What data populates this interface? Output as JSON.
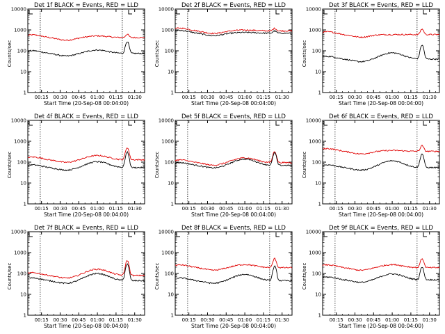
{
  "figure": {
    "ylabel": "Counts/sec",
    "xlabel": "Start Time (20-Sep-08 00:04:00)",
    "y_ticks": [
      "1",
      "10",
      "100",
      "1000",
      "10000"
    ],
    "x_ticks": [
      "00:15",
      "00:30",
      "00:45",
      "01:00",
      "01:15",
      "01:30"
    ],
    "colors": {
      "events": "#000000",
      "lld": "#e00000",
      "axes": "#000000"
    }
  },
  "chart_data": [
    {
      "type": "line",
      "title": "Det 1f BLACK = Events, RED = LLD",
      "xlabel": "Start Time (20-Sep-08 00:04:00)",
      "ylabel": "Counts/sec",
      "y_scale": "log",
      "ylim": [
        1,
        10000
      ],
      "x_ticks": [
        "00:15",
        "00:30",
        "00:45",
        "01:00",
        "01:15",
        "01:30"
      ],
      "markers": [
        "00:14",
        "01:20"
      ],
      "series": [
        {
          "name": "Events",
          "color": "#000000",
          "base": 75,
          "bump": 1.45,
          "peak": 280
        },
        {
          "name": "LLD",
          "color": "#e00000",
          "base": 430,
          "bump": 1.2,
          "peak": 620
        }
      ]
    },
    {
      "type": "line",
      "title": "Det 2f BLACK = Events, RED = LLD",
      "xlabel": "Start Time (20-Sep-08 00:04:00)",
      "ylabel": "Counts/sec",
      "y_scale": "log",
      "ylim": [
        1,
        10000
      ],
      "x_ticks": [
        "00:15",
        "00:30",
        "00:45",
        "01:00",
        "01:15",
        "01:30"
      ],
      "markers": [
        "00:14",
        "01:20"
      ],
      "series": [
        {
          "name": "Events",
          "color": "#000000",
          "base": 700,
          "bump": 1.08,
          "peak": 900
        },
        {
          "name": "LLD",
          "color": "#e00000",
          "base": 900,
          "bump": 1.1,
          "peak": 1200
        }
      ]
    },
    {
      "type": "line",
      "title": "Det 3f BLACK = Events, RED = LLD",
      "xlabel": "Start Time (20-Sep-08 00:04:00)",
      "ylabel": "Counts/sec",
      "y_scale": "log",
      "ylim": [
        1,
        10000
      ],
      "x_ticks": [
        "00:15",
        "00:30",
        "00:45",
        "01:00",
        "01:15",
        "01:30"
      ],
      "markers": [
        "00:14",
        "01:20"
      ],
      "series": [
        {
          "name": "Events",
          "color": "#000000",
          "base": 40,
          "bump": 2.0,
          "peak": 190
        },
        {
          "name": "LLD",
          "color": "#e00000",
          "base": 600,
          "bump": 1.0,
          "peak": 1100
        }
      ]
    },
    {
      "type": "line",
      "title": "Det 4f BLACK = Events, RED = LLD",
      "xlabel": "Start Time (20-Sep-08 00:04:00)",
      "ylabel": "Counts/sec",
      "y_scale": "log",
      "ylim": [
        1,
        10000
      ],
      "x_ticks": [
        "00:15",
        "00:30",
        "00:45",
        "01:00",
        "01:15",
        "01:30"
      ],
      "markers": [
        "00:14",
        "01:20"
      ],
      "series": [
        {
          "name": "Events",
          "color": "#000000",
          "base": 55,
          "bump": 1.9,
          "peak": 300
        },
        {
          "name": "LLD",
          "color": "#e00000",
          "base": 130,
          "bump": 1.6,
          "peak": 500
        }
      ]
    },
    {
      "type": "line",
      "title": "Det 5f BLACK = Events, RED = LLD",
      "xlabel": "Start Time (20-Sep-08 00:04:00)",
      "ylabel": "Counts/sec",
      "y_scale": "log",
      "ylim": [
        1,
        10000
      ],
      "x_ticks": [
        "00:15",
        "00:30",
        "00:45",
        "01:00",
        "01:15",
        "01:30"
      ],
      "markers": [
        "00:14",
        "01:20"
      ],
      "series": [
        {
          "name": "Events",
          "color": "#000000",
          "base": 70,
          "bump": 2.0,
          "peak": 280
        },
        {
          "name": "LLD",
          "color": "#e00000",
          "base": 95,
          "bump": 1.7,
          "peak": 330
        }
      ]
    },
    {
      "type": "line",
      "title": "Det 6f BLACK = Events, RED = LLD",
      "xlabel": "Start Time (20-Sep-08 00:04:00)",
      "ylabel": "Counts/sec",
      "y_scale": "log",
      "ylim": [
        1,
        10000
      ],
      "x_ticks": [
        "00:15",
        "00:30",
        "00:45",
        "01:00",
        "01:15",
        "01:30"
      ],
      "markers": [
        "00:14",
        "01:20"
      ],
      "series": [
        {
          "name": "Events",
          "color": "#000000",
          "base": 55,
          "bump": 2.1,
          "peak": 250
        },
        {
          "name": "LLD",
          "color": "#e00000",
          "base": 330,
          "bump": 1.1,
          "peak": 620
        }
      ]
    },
    {
      "type": "line",
      "title": "Det 7f BLACK = Events, RED = LLD",
      "xlabel": "Start Time (20-Sep-08 00:04:00)",
      "ylabel": "Counts/sec",
      "y_scale": "log",
      "ylim": [
        1,
        10000
      ],
      "x_ticks": [
        "00:15",
        "00:30",
        "00:45",
        "01:00",
        "01:15",
        "01:30"
      ],
      "markers": [
        "00:14",
        "01:20"
      ],
      "series": [
        {
          "name": "Events",
          "color": "#000000",
          "base": 45,
          "bump": 2.2,
          "peak": 280
        },
        {
          "name": "LLD",
          "color": "#e00000",
          "base": 80,
          "bump": 2.0,
          "peak": 420
        }
      ]
    },
    {
      "type": "line",
      "title": "Det 8f BLACK = Events, RED = LLD",
      "xlabel": "Start Time (20-Sep-08 00:04:00)",
      "ylabel": "Counts/sec",
      "y_scale": "log",
      "ylim": [
        1,
        10000
      ],
      "x_ticks": [
        "00:15",
        "00:30",
        "00:45",
        "01:00",
        "01:15",
        "01:30"
      ],
      "markers": [
        "00:14",
        "01:20"
      ],
      "series": [
        {
          "name": "Events",
          "color": "#000000",
          "base": 45,
          "bump": 2.0,
          "peak": 220
        },
        {
          "name": "LLD",
          "color": "#e00000",
          "base": 190,
          "bump": 1.4,
          "peak": 520
        }
      ]
    },
    {
      "type": "line",
      "title": "Det 9f BLACK = Events, RED = LLD",
      "xlabel": "Start Time (20-Sep-08 00:04:00)",
      "ylabel": "Counts/sec",
      "y_scale": "log",
      "ylim": [
        1,
        10000
      ],
      "x_ticks": [
        "00:15",
        "00:30",
        "00:45",
        "01:00",
        "01:15",
        "01:30"
      ],
      "markers": [
        "00:14",
        "01:20"
      ],
      "series": [
        {
          "name": "Events",
          "color": "#000000",
          "base": 50,
          "bump": 1.9,
          "peak": 200
        },
        {
          "name": "LLD",
          "color": "#e00000",
          "base": 190,
          "bump": 1.4,
          "peak": 520
        }
      ]
    }
  ]
}
